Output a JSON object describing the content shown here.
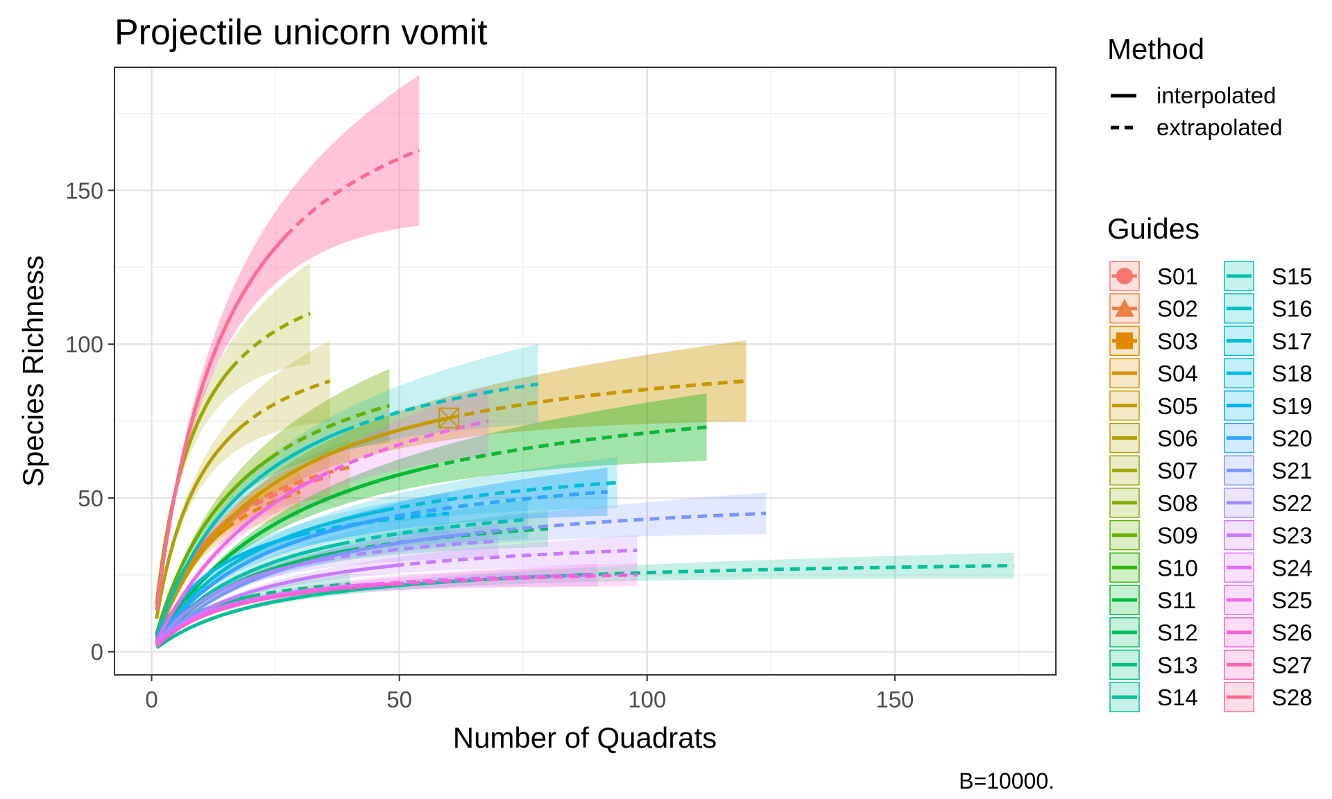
{
  "chart_data": {
    "type": "line",
    "title": "Projectile unicorn vomit",
    "xlabel": "Number of Quadrats",
    "ylabel": "Species Richness",
    "caption": "B=10000.",
    "xlim": [
      -7.5,
      182.5
    ],
    "ylim": [
      -7.5,
      190
    ],
    "x_ticks": [
      0,
      50,
      100,
      150
    ],
    "y_ticks": [
      0,
      50,
      100,
      150
    ],
    "grid": true,
    "legend_placement": "right",
    "legend_method": {
      "title": "Method",
      "items": [
        {
          "label": "interpolated",
          "style": "solid"
        },
        {
          "label": "extrapolated",
          "style": "dashed"
        }
      ]
    },
    "legend_guides_title": "Guides",
    "series": [
      {
        "name": "S01",
        "color": "#F8766D",
        "n": 18,
        "obs": 45,
        "xmax": 36,
        "ymax": 57
      },
      {
        "name": "S02",
        "color": "#EE8043",
        "n": 20,
        "obs": 48,
        "xmax": 40,
        "ymax": 60
      },
      {
        "name": "S03",
        "color": "#E38900",
        "n": 15,
        "obs": 40,
        "xmax": 30,
        "ymax": 52
      },
      {
        "name": "S04",
        "color": "#D59100",
        "n": 60,
        "obs": 76,
        "xmax": 120,
        "ymax": 88
      },
      {
        "name": "S05",
        "color": "#C59900",
        "n": 60,
        "obs": 76,
        "xmax": 120,
        "ymax": 88
      },
      {
        "name": "S06",
        "color": "#B3A000",
        "n": 18,
        "obs": 73,
        "xmax": 36,
        "ymax": 88
      },
      {
        "name": "S07",
        "color": "#9DA700",
        "n": 16,
        "obs": 92,
        "xmax": 32,
        "ymax": 110
      },
      {
        "name": "S08",
        "color": "#85AD00",
        "n": 24,
        "obs": 63,
        "xmax": 48,
        "ymax": 80
      },
      {
        "name": "S09",
        "color": "#64B200",
        "n": 24,
        "obs": 63,
        "xmax": 48,
        "ymax": 80
      },
      {
        "name": "S10",
        "color": "#2BB600",
        "n": 56,
        "obs": 60,
        "xmax": 112,
        "ymax": 73
      },
      {
        "name": "S11",
        "color": "#00BA38",
        "n": 56,
        "obs": 60,
        "xmax": 112,
        "ymax": 73
      },
      {
        "name": "S12",
        "color": "#00BD5F",
        "n": 40,
        "obs": 33,
        "xmax": 80,
        "ymax": 40
      },
      {
        "name": "S13",
        "color": "#00BF7D",
        "n": 20,
        "obs": 18,
        "xmax": 40,
        "ymax": 22
      },
      {
        "name": "S14",
        "color": "#00C097",
        "n": 87,
        "obs": 25,
        "xmax": 174,
        "ymax": 28
      },
      {
        "name": "S15",
        "color": "#00C1AE",
        "n": 38,
        "obs": 35,
        "xmax": 76,
        "ymax": 43
      },
      {
        "name": "S16",
        "color": "#00BFC4",
        "n": 39,
        "obs": 72,
        "xmax": 78,
        "ymax": 87
      },
      {
        "name": "S17",
        "color": "#00BCD7",
        "n": 47,
        "obs": 46,
        "xmax": 94,
        "ymax": 55
      },
      {
        "name": "S18",
        "color": "#00B8E7",
        "n": 30,
        "obs": 38,
        "xmax": 60,
        "ymax": 45
      },
      {
        "name": "S19",
        "color": "#00B1F4",
        "n": 46,
        "obs": 43,
        "xmax": 92,
        "ymax": 52
      },
      {
        "name": "S20",
        "color": "#35A2FF",
        "n": 46,
        "obs": 43,
        "xmax": 92,
        "ymax": 52
      },
      {
        "name": "S21",
        "color": "#7C96FF",
        "n": 62,
        "obs": 38,
        "xmax": 124,
        "ymax": 45
      },
      {
        "name": "S22",
        "color": "#A58AFF",
        "n": 35,
        "obs": 30,
        "xmax": 70,
        "ymax": 36
      },
      {
        "name": "S23",
        "color": "#C77CFF",
        "n": 49,
        "obs": 28,
        "xmax": 98,
        "ymax": 33
      },
      {
        "name": "S24",
        "color": "#DE71F9",
        "n": 45,
        "obs": 22,
        "xmax": 90,
        "ymax": 25
      },
      {
        "name": "S25",
        "color": "#EF67EB",
        "n": 34,
        "obs": 57,
        "xmax": 68,
        "ymax": 75
      },
      {
        "name": "S26",
        "color": "#FB61D7",
        "n": 49,
        "obs": 22,
        "xmax": 98,
        "ymax": 25
      },
      {
        "name": "S27",
        "color": "#FF64B0",
        "n": 27,
        "obs": 135,
        "xmax": 54,
        "ymax": 163
      },
      {
        "name": "S28",
        "color": "#FF6C91",
        "n": 27,
        "obs": 135,
        "xmax": 54,
        "ymax": 163
      }
    ]
  }
}
